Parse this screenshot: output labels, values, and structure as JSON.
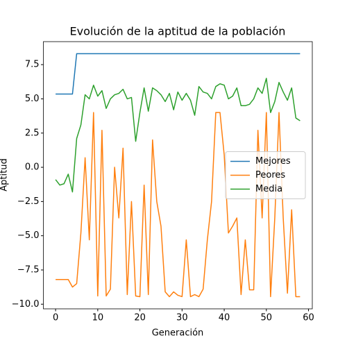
{
  "chart_data": {
    "type": "line",
    "title": "Evolución de la aptitud de la población",
    "x_label": "Generación",
    "y_label": "Aptitud",
    "x": [
      0,
      1,
      2,
      3,
      4,
      5,
      6,
      7,
      8,
      9,
      10,
      11,
      12,
      13,
      14,
      15,
      16,
      17,
      18,
      19,
      20,
      21,
      22,
      23,
      24,
      25,
      26,
      27,
      28,
      29,
      30,
      31,
      32,
      33,
      34,
      35,
      36,
      37,
      38,
      39,
      40,
      41,
      42,
      43,
      44,
      45,
      46,
      47,
      48,
      49,
      50,
      51,
      52,
      53,
      54,
      55,
      56,
      57,
      58
    ],
    "series": [
      {
        "name": "Mejores",
        "color": "#1f77b4",
        "values": [
          5.35,
          5.35,
          5.35,
          5.35,
          5.35,
          8.3,
          8.3,
          8.3,
          8.3,
          8.3,
          8.3,
          8.3,
          8.3,
          8.3,
          8.3,
          8.3,
          8.3,
          8.3,
          8.3,
          8.3,
          8.3,
          8.3,
          8.3,
          8.3,
          8.3,
          8.3,
          8.3,
          8.3,
          8.3,
          8.3,
          8.3,
          8.3,
          8.3,
          8.3,
          8.3,
          8.3,
          8.3,
          8.3,
          8.3,
          8.3,
          8.3,
          8.3,
          8.3,
          8.3,
          8.3,
          8.3,
          8.3,
          8.3,
          8.3,
          8.3,
          8.3,
          8.3,
          8.3,
          8.3,
          8.3,
          8.3,
          8.3,
          8.3,
          8.3
        ]
      },
      {
        "name": "Peores",
        "color": "#ff7f0e",
        "values": [
          -8.2,
          -8.2,
          -8.2,
          -8.2,
          -8.75,
          -8.5,
          -4.8,
          0.7,
          -5.3,
          4.0,
          -9.4,
          2.7,
          -9.4,
          -8.9,
          0.0,
          -3.7,
          1.4,
          -9.3,
          -2.5,
          -9.4,
          -9.45,
          -1.3,
          -9.3,
          2.0,
          -2.5,
          -4.3,
          -9.1,
          -9.45,
          -9.1,
          -9.35,
          -9.45,
          -5.3,
          -9.45,
          -9.3,
          -9.45,
          -8.9,
          -5.3,
          -2.5,
          4.0,
          4.0,
          0.9,
          -4.8,
          -4.3,
          -3.7,
          -9.3,
          -5.3,
          -8.95,
          -8.95,
          2.7,
          -3.7,
          4.0,
          -9.45,
          -3.7,
          4.0,
          -3.7,
          -9.2,
          -3.1,
          -9.45,
          -9.45
        ]
      },
      {
        "name": "Media",
        "color": "#2ca02c",
        "values": [
          -0.9,
          -1.3,
          -1.2,
          -0.5,
          -1.8,
          2.1,
          3.1,
          5.3,
          5.0,
          6.0,
          5.2,
          5.6,
          4.3,
          5.0,
          5.3,
          5.4,
          5.7,
          5.0,
          5.1,
          1.9,
          4.0,
          5.8,
          4.1,
          5.8,
          5.6,
          5.3,
          4.8,
          5.4,
          4.2,
          5.5,
          4.9,
          5.4,
          4.9,
          3.8,
          5.9,
          5.5,
          5.4,
          5.0,
          5.9,
          6.1,
          6.0,
          5.0,
          5.2,
          5.8,
          4.5,
          4.5,
          4.6,
          5.0,
          5.8,
          5.4,
          6.5,
          4.0,
          4.8,
          6.2,
          5.5,
          4.9,
          5.8,
          3.6,
          3.4
        ]
      }
    ],
    "xlim": [
      -2.9,
      60.9
    ],
    "ylim": [
      -10.34,
      9.18
    ],
    "xticks": [
      0,
      10,
      20,
      30,
      40,
      50,
      60
    ],
    "yticks": [
      {
        "value": -10,
        "label": "−10.0"
      },
      {
        "value": -7.5,
        "label": "−7.5"
      },
      {
        "value": -5,
        "label": "−5.0"
      },
      {
        "value": -2.5,
        "label": "−2.5"
      },
      {
        "value": 0,
        "label": "0.0"
      },
      {
        "value": 2.5,
        "label": "2.5"
      },
      {
        "value": 5,
        "label": "5.0"
      },
      {
        "value": 7.5,
        "label": "7.5"
      }
    ],
    "legend": "center right",
    "grid": false
  }
}
